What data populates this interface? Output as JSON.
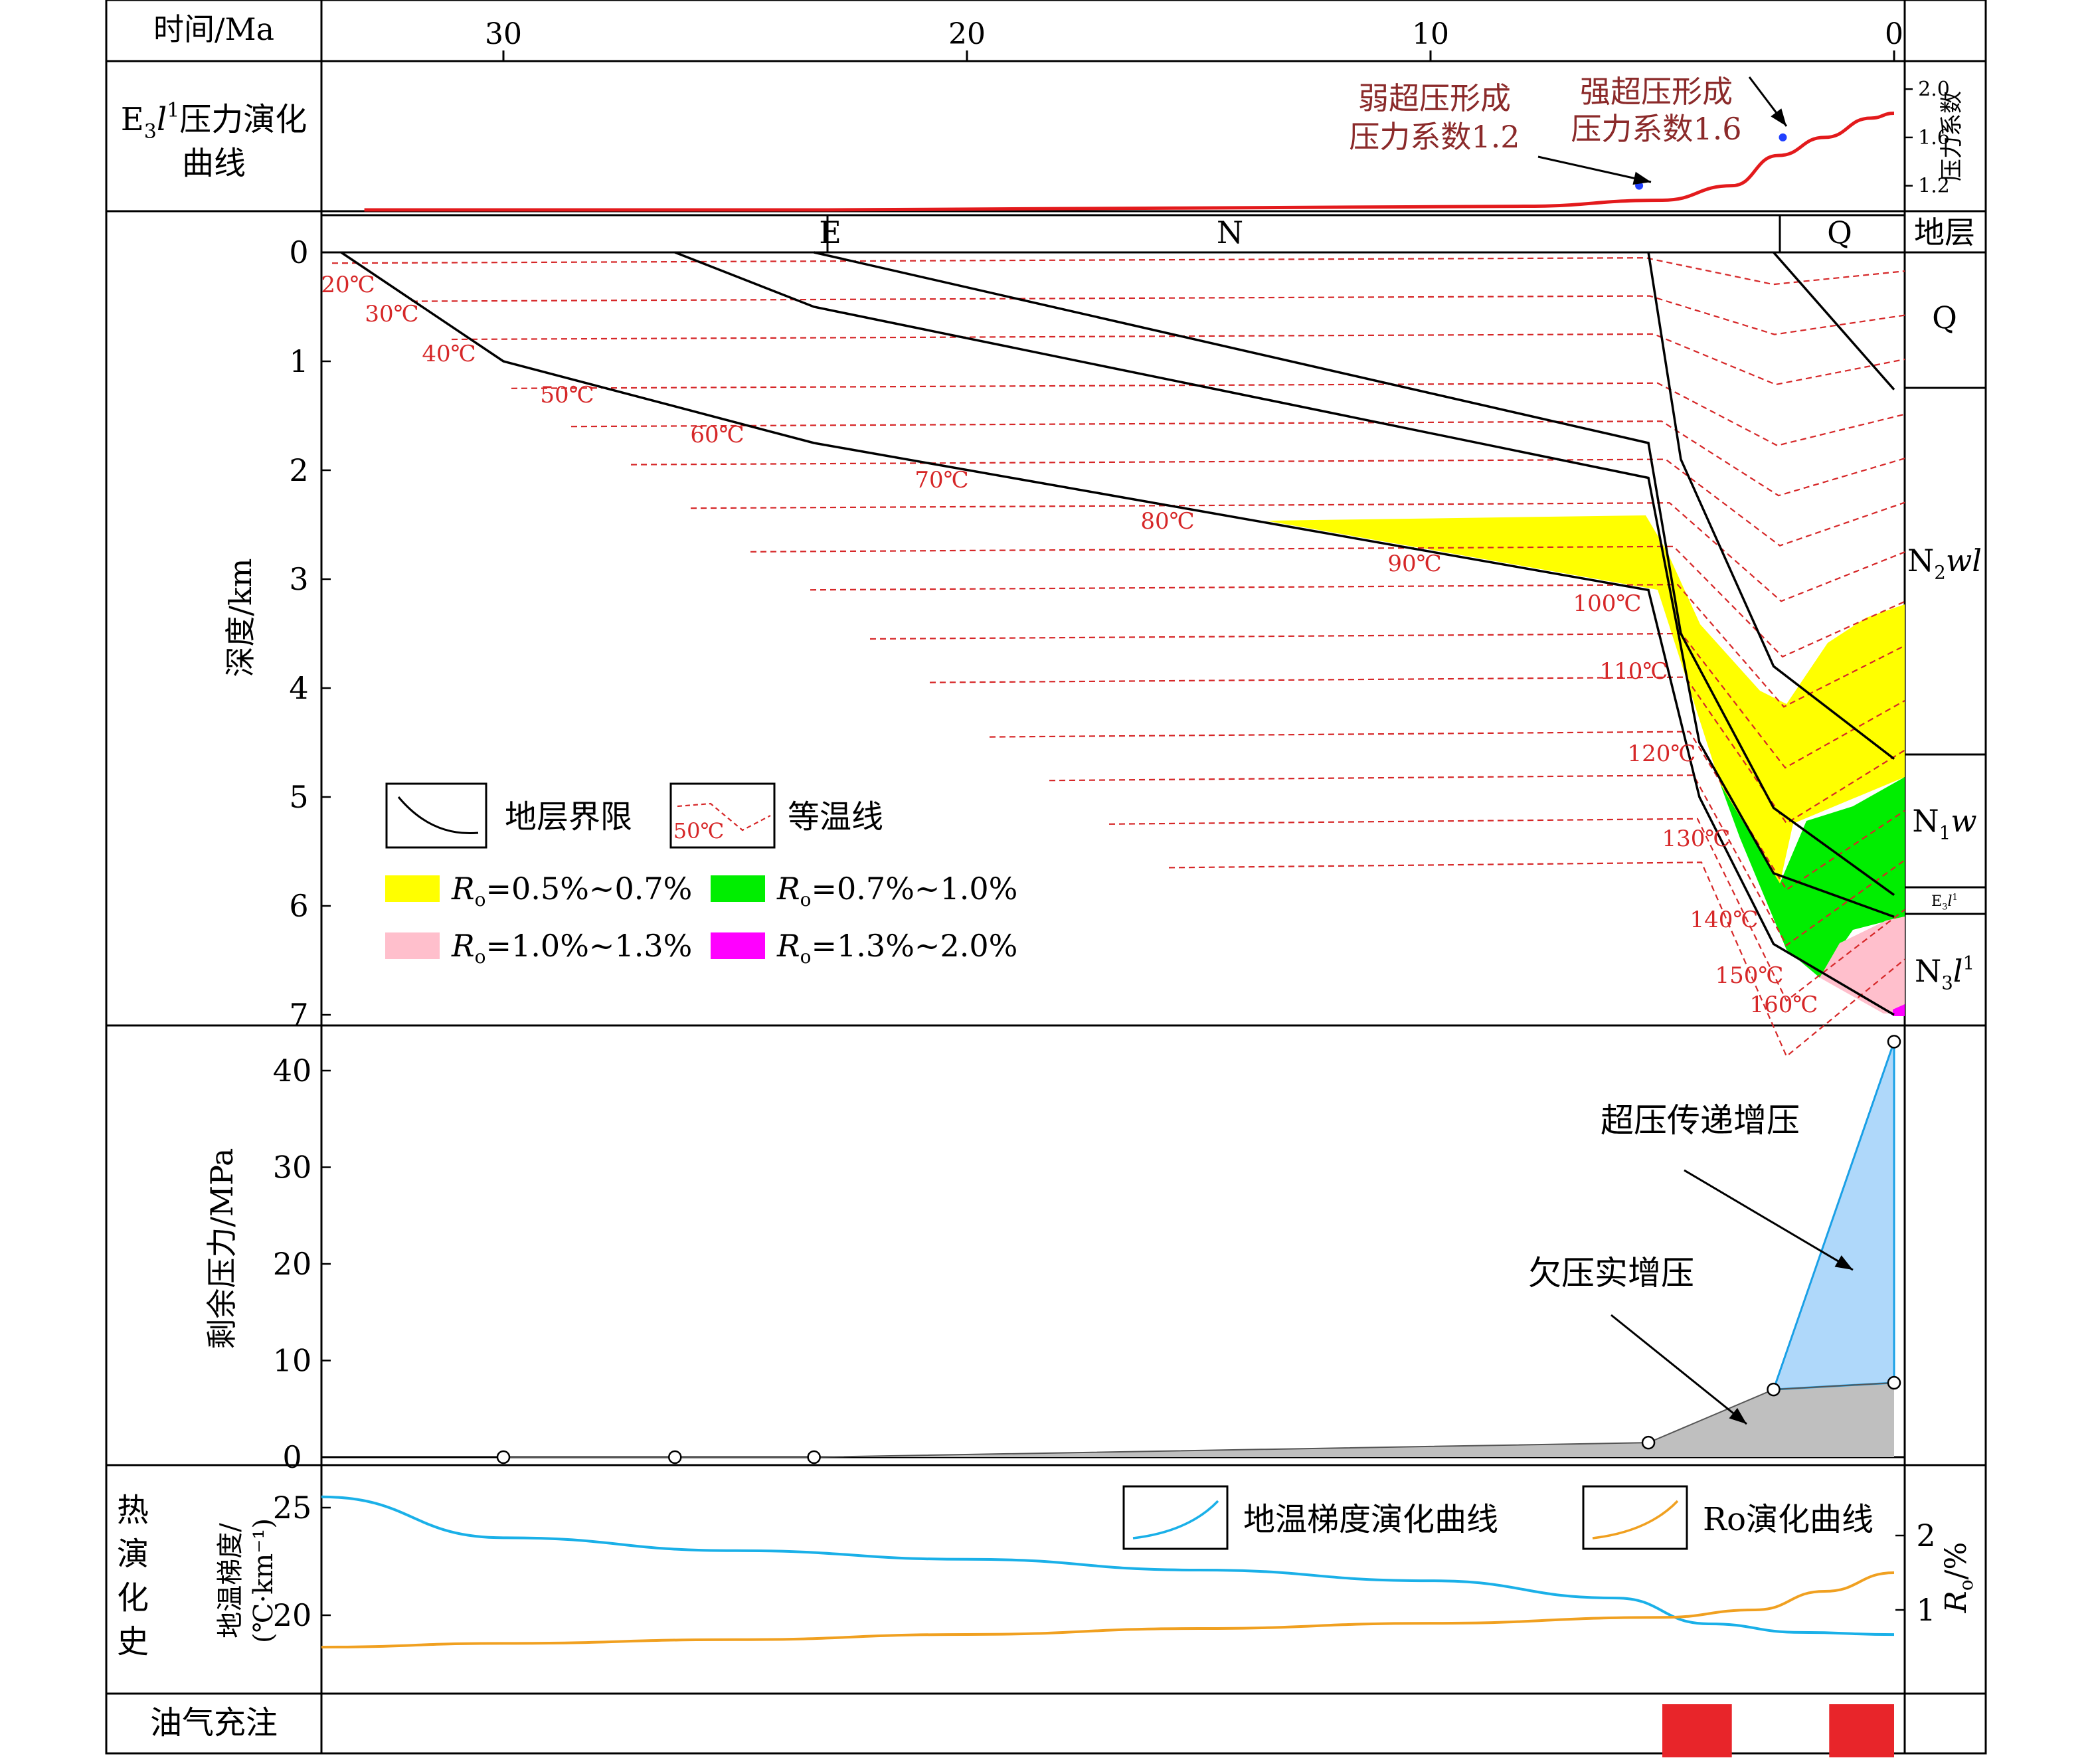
{
  "header": {
    "time_label": "时间/Ma",
    "ticks": [
      {
        "value": 30,
        "label": "30"
      },
      {
        "value": 20,
        "label": "20"
      },
      {
        "value": 10,
        "label": "10"
      },
      {
        "value": 0,
        "label": "0"
      }
    ]
  },
  "pressure_panel": {
    "label_line1_pre": "E",
    "label_line1_sub": "3",
    "label_line1_it": "l",
    "label_line1_sup": "1",
    "label_line1_post": "压力演化",
    "label_line2": "曲线",
    "right_axis_label": "压力系数",
    "right_ticks": [
      "2.0",
      "1.6",
      "1.2"
    ],
    "annotation_weak": [
      "弱超压形成",
      "压力系数1.2"
    ],
    "annotation_strong": [
      "强超压形成",
      "压力系数1.6"
    ]
  },
  "burial_panel": {
    "ylabel": "深度/km",
    "y_ticks": [
      "0",
      "1",
      "2",
      "3",
      "4",
      "5",
      "6",
      "7"
    ],
    "strata_top": [
      "E",
      "N",
      "Q"
    ],
    "strata_header": "地层",
    "strata_right": [
      {
        "pre": "Q",
        "sub": "",
        "it": "",
        "sup": ""
      },
      {
        "pre": "N",
        "sub": "2",
        "it": "wl",
        "sup": ""
      },
      {
        "pre": "N",
        "sub": "1",
        "it": "w",
        "sup": ""
      },
      {
        "pre": "E",
        "sub": "3",
        "it": "l",
        "sup": "1"
      },
      {
        "pre": "N",
        "sub": "3",
        "it": "l",
        "sup": "1"
      }
    ],
    "isotherm_labels": [
      "20℃",
      "30℃",
      "40℃",
      "50℃",
      "60℃",
      "70℃",
      "80℃",
      "90℃",
      "100℃",
      "110℃",
      "120℃",
      "130℃",
      "140℃",
      "150℃",
      "160℃"
    ],
    "legend": {
      "boundary": "地层界限",
      "isotherm": "等温线",
      "isotherm_icon_text": "50℃",
      "ro_items": [
        {
          "text": "=0.5%~0.7%",
          "color": "#ffff00"
        },
        {
          "text": "=0.7%~1.0%",
          "color": "#00ee00"
        },
        {
          "text": "=1.0%~1.3%",
          "color": "#ffbfcc"
        },
        {
          "text": "=1.3%~2.0%",
          "color": "#ff00ff"
        }
      ],
      "ro_symbol": "R",
      "ro_sub": "o"
    }
  },
  "excess_panel": {
    "ylabel": "剩余压力/MPa",
    "y_ticks": [
      "0",
      "10",
      "20",
      "30",
      "40"
    ],
    "annotation_transfer": "超压传递增压",
    "annotation_under": "欠压实增压"
  },
  "thermal_panel": {
    "side_label": [
      "热",
      "演",
      "化",
      "史"
    ],
    "ylabel_line1": "地温梯度/",
    "ylabel_line2": "(℃·km⁻¹)",
    "y_ticks": [
      "25",
      "20"
    ],
    "right_ylabel_pre": "R",
    "right_ylabel_sub": "o",
    "right_ylabel_post": "/%",
    "right_ticks": [
      "2",
      "1"
    ],
    "legend_gradient": "地温梯度演化曲线",
    "legend_ro": "Ro演化曲线"
  },
  "charge_panel": {
    "label": "油气充注"
  },
  "colors": {
    "pressure_curve": "#e31a1c",
    "isotherm": "#d62728",
    "ro_yellow": "#ffff00",
    "ro_green": "#00ee00",
    "ro_pink": "#ffbfcc",
    "ro_magenta": "#ff00ff",
    "transfer_fill": "#afd8fa",
    "transfer_edge": "#1aa0e6",
    "under_fill": "#bfbfbf",
    "gradient_curve": "#1ab0e8",
    "ro_curve": "#f0a020",
    "charge": "#e8252a",
    "annotation_text": "#8b2a2a"
  },
  "chart_data": [
    {
      "type": "line",
      "x_unit": "Ma",
      "xlim": [
        34,
        0
      ],
      "ylim": [
        1.0,
        2.1
      ],
      "series": [
        {
          "x": [
            33,
            28,
            23,
            18,
            13,
            8,
            5,
            3.5,
            2.5,
            1.5,
            0.5,
            0
          ],
          "y": [
            1.0,
            1.0,
            1.0,
            1.01,
            1.02,
            1.03,
            1.08,
            1.2,
            1.45,
            1.6,
            1.76,
            1.8
          ]
        }
      ],
      "markers": [
        {
          "x": 5.5,
          "y": 1.2
        },
        {
          "x": 2.4,
          "y": 1.6
        }
      ]
    },
    {
      "type": "line",
      "x_unit": "Ma",
      "y_unit": "km",
      "xlim": [
        34,
        0
      ],
      "ylim": [
        7,
        0
      ],
      "boundaries": [
        {
          "x": [
            33.5,
            30,
            23.3,
            5.3,
            4.2,
            2.6,
            0
          ],
          "y": [
            0,
            1.0,
            1.75,
            3.1,
            5.0,
            6.35,
            7.0
          ]
        },
        {
          "x": [
            26.3,
            23.3,
            5.3,
            4.2,
            2.6,
            0
          ],
          "y": [
            0,
            0.5,
            2.07,
            4.5,
            5.7,
            6.1
          ]
        },
        {
          "x": [
            23.3,
            5.3,
            4.6,
            2.6,
            0
          ],
          "y": [
            0,
            1.75,
            3.5,
            5.1,
            5.9
          ]
        },
        {
          "x": [
            5.3,
            4.6,
            2.6,
            0
          ],
          "y": [
            0,
            1.9,
            3.8,
            4.65
          ]
        },
        {
          "x": [
            2.6,
            0
          ],
          "y": [
            0,
            1.26
          ]
        }
      ],
      "isotherm_depths_km": [
        0.05,
        0.4,
        0.75,
        1.2,
        1.55,
        1.9,
        2.3,
        2.7,
        3.05,
        3.5,
        3.9,
        4.4,
        4.8,
        5.2,
        5.6
      ],
      "isotherm_temps_c": [
        20,
        30,
        40,
        50,
        60,
        70,
        80,
        90,
        100,
        110,
        120,
        130,
        140,
        150,
        160
      ]
    },
    {
      "type": "area",
      "x_unit": "Ma",
      "y_unit": "MPa",
      "xlim": [
        34,
        0
      ],
      "ylim": [
        0,
        45
      ],
      "undercompaction": {
        "x": [
          30,
          26.3,
          23.3,
          5.3,
          2.6,
          0
        ],
        "y": [
          0,
          0,
          0,
          1.5,
          7,
          7.7
        ]
      },
      "transfer": {
        "x": [
          2.6,
          0
        ],
        "y": [
          7,
          43
        ]
      },
      "markers": [
        {
          "x": 30,
          "y": 0
        },
        {
          "x": 26.3,
          "y": 0
        },
        {
          "x": 23.3,
          "y": 0
        },
        {
          "x": 5.3,
          "y": 1.5
        },
        {
          "x": 2.6,
          "y": 7
        },
        {
          "x": 0,
          "y": 7.7
        },
        {
          "x": 0,
          "y": 43
        }
      ]
    },
    {
      "type": "line",
      "x_unit": "Ma",
      "series": [
        {
          "name": "地温梯度演化曲线",
          "y_unit": "℃·km⁻¹",
          "x": [
            34,
            30,
            25,
            20,
            15,
            10,
            6,
            4,
            2,
            0
          ],
          "y": [
            25.5,
            23.6,
            23.0,
            22.6,
            22.1,
            21.6,
            20.8,
            19.6,
            19.2,
            19.1
          ]
        },
        {
          "name": "Ro演化曲线",
          "y_unit": "%",
          "x": [
            34,
            30,
            25,
            20,
            15,
            10,
            5,
            3,
            1.5,
            0
          ],
          "y": [
            0.5,
            0.55,
            0.6,
            0.67,
            0.75,
            0.82,
            0.9,
            1.0,
            1.25,
            1.5
          ]
        }
      ],
      "left_ylim": [
        17.5,
        26.5
      ],
      "right_ylim": [
        0,
        2.8
      ]
    },
    {
      "type": "bar",
      "label": "油气充注",
      "intervals_ma": [
        [
          5.0,
          3.5
        ],
        [
          1.4,
          0
        ]
      ]
    }
  ]
}
